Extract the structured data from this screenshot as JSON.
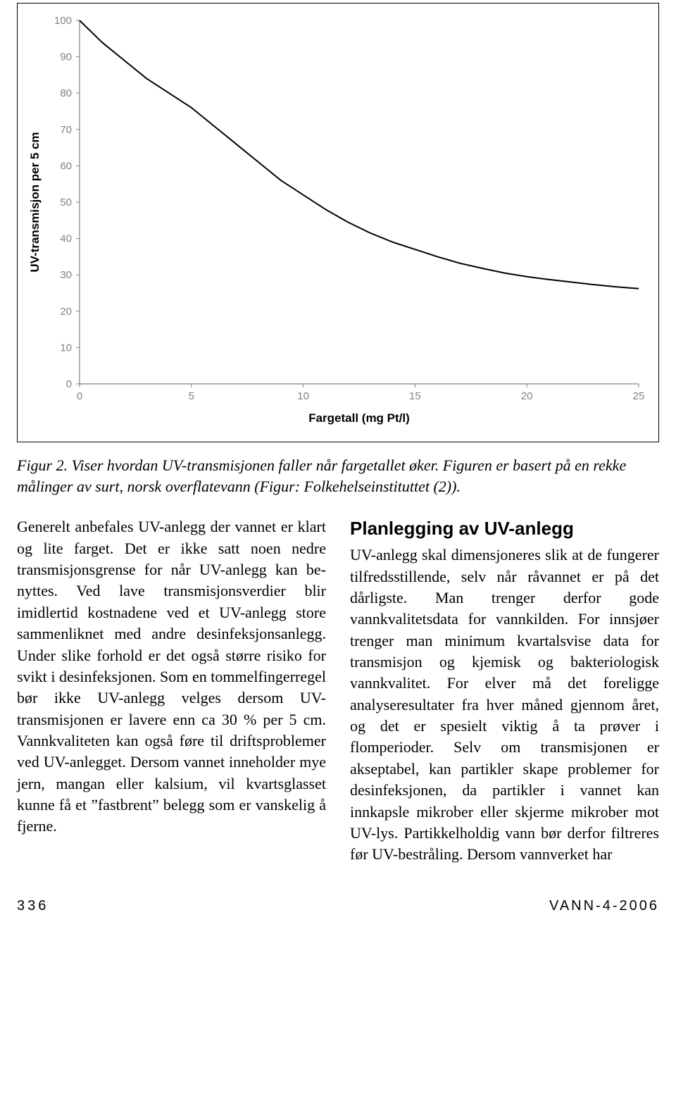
{
  "chart": {
    "type": "line",
    "xlabel": "Fargetall (mg Pt/l)",
    "ylabel": "UV-transmisjon per 5 cm",
    "xlim": [
      0,
      25
    ],
    "ylim": [
      0,
      100
    ],
    "xtick_step": 5,
    "ytick_step": 10,
    "xticks": [
      0,
      5,
      10,
      15,
      20,
      25
    ],
    "yticks": [
      0,
      10,
      20,
      30,
      40,
      50,
      60,
      70,
      80,
      90,
      100
    ],
    "x_values": [
      0,
      1,
      2,
      3,
      4,
      5,
      6,
      7,
      8,
      9,
      10,
      11,
      12,
      13,
      14,
      15,
      16,
      17,
      18,
      19,
      20,
      21,
      22,
      23,
      24,
      25
    ],
    "y_values": [
      100,
      94,
      89,
      84,
      80,
      76,
      71,
      66,
      61,
      56,
      52,
      48,
      44.5,
      41.5,
      39,
      37,
      35,
      33.2,
      31.8,
      30.5,
      29.5,
      28.7,
      28,
      27.3,
      26.7,
      26.2
    ],
    "line_color": "#000000",
    "line_width": 2,
    "axis_color": "#808080",
    "tick_color": "#808080",
    "tick_len": 5,
    "background_color": "#ffffff",
    "grid": false,
    "label_fontsize": 17,
    "label_fontweight": "bold",
    "tick_fontsize": 15,
    "tick_fontcolor": "#808080",
    "ylabel_sideways": true
  },
  "caption": "Figur 2. Viser hvordan UV-transmisjonen faller når fargetallet øker. Figuren er basert på en rekke målinger av surt, norsk overflatevann (Figur: Folkehelseinstituttet (2)).",
  "col_left": "Generelt anbefales UV-anlegg der vannet er klart og lite farget. Det er ikke satt noen nedre transmisjons­grense for når UV-anlegg kan be­nyttes. Ved lave transmisjonsverdier blir imidlertid kostnadene ved et UV-anlegg store sammenliknet med andre desinfeksjonsanlegg. Under slike forhold er det også større risiko for svikt i desinfeksjonen. Som en tom­melfingerregel bør ikke UV-anlegg velges dersom UV-transmisjonen er lavere enn ca 30 % per 5 cm. Vann­kvaliteten kan også føre til drifts­problemer ved UV-anlegget. Dersom vannet inneholder mye jern, mangan eller kalsium, vil kvartsglasset kunne få et ”fastbrent” belegg som er vanskelig å fjerne.",
  "heading_right": "Planlegging av UV-anlegg",
  "col_right": "UV-anlegg skal dimensjoneres slik at de fungerer tilfredsstillende, selv når råvannet er på det dårligste. Man trenger derfor gode vannkvalitetsdata for vannkilden. For innsjøer trenger man minimum kvartalsvise data for transmisjon og kjemisk og bakterio­logisk vannkvalitet. For elver må det foreligge analyseresultater fra hver måned gjennom året, og det er spesielt viktig å ta prøver i flomperioder. Selv om transmisjonen er akseptabel, kan partikler skape problemer for desin­feksjonen, da partikler i vannet kan innkapsle mikrober eller skjerme mikrober mot UV-lys. Partikkelholdig vann bør derfor filtreres før UV-bestråling. Dersom vannverket har",
  "footer": {
    "page": "336",
    "publication": "VANN-4-2006"
  }
}
